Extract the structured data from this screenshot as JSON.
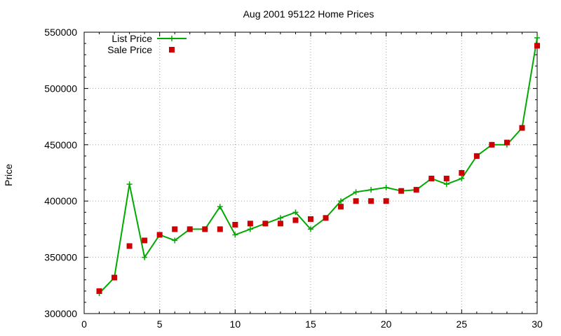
{
  "chart_data": {
    "type": "line",
    "title": "Aug 2001 95122 Home Prices",
    "xlabel": "",
    "ylabel": "Price",
    "xlim": [
      0,
      30
    ],
    "ylim": [
      300000,
      550000
    ],
    "xticks": [
      0,
      5,
      10,
      15,
      20,
      25,
      30
    ],
    "yticks": [
      300000,
      350000,
      400000,
      450000,
      500000,
      550000
    ],
    "grid": true,
    "legend_position": "top-left",
    "series": [
      {
        "name": "List Price",
        "kind": "line-with-plus-markers",
        "color": "#00aa00",
        "x": [
          1,
          2,
          3,
          4,
          5,
          6,
          7,
          8,
          9,
          10,
          11,
          12,
          13,
          14,
          15,
          16,
          17,
          18,
          19,
          20,
          21,
          22,
          23,
          24,
          25,
          26,
          27,
          28,
          29,
          30
        ],
        "y": [
          318000,
          332000,
          415000,
          350000,
          370000,
          365000,
          375000,
          375000,
          395000,
          370000,
          375000,
          380000,
          385000,
          390000,
          375000,
          385000,
          400000,
          408000,
          410000,
          412000,
          409000,
          410000,
          420000,
          415000,
          420000,
          440000,
          450000,
          450000,
          465000,
          545000
        ]
      },
      {
        "name": "Sale Price",
        "kind": "square-markers",
        "color": "#cc0000",
        "x": [
          1,
          2,
          3,
          4,
          5,
          6,
          7,
          8,
          9,
          10,
          11,
          12,
          13,
          14,
          15,
          16,
          17,
          18,
          19,
          20,
          21,
          22,
          23,
          24,
          25,
          26,
          27,
          28,
          29,
          30
        ],
        "y": [
          320000,
          332000,
          360000,
          365000,
          370000,
          375000,
          375000,
          375000,
          375000,
          379000,
          380000,
          380000,
          380000,
          383000,
          384000,
          385000,
          395000,
          400000,
          400000,
          400000,
          409000,
          410000,
          420000,
          420000,
          425000,
          440000,
          450000,
          452000,
          465000,
          538000
        ]
      }
    ]
  }
}
